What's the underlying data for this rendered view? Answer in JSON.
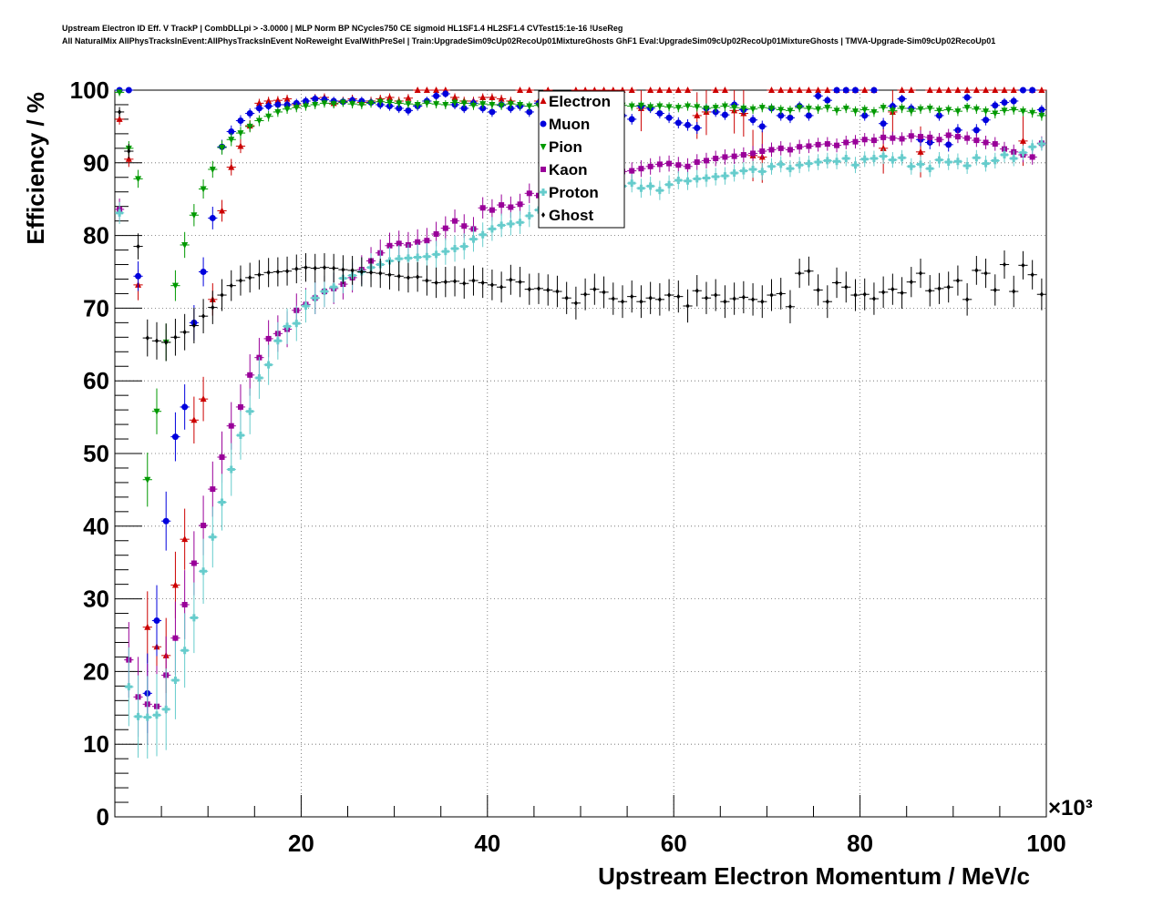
{
  "header": {
    "title_line1": "Upstream Electron ID Eff. V TrackP | CombDLLpi > -3.0000 | MLP Norm BP NCycles750 CE sigmoid HL1SF1.4 HL2SF1.4 CVTest15:1e-16 !UseReg",
    "title_line2": "All NaturalMix AllPhysTracksInEvent:AllPhysTracksInEvent NoReweight EvalWithPreSel | Train:UpgradeSim09cUp02RecoUp01MixtureGhosts GhF1 Eval:UpgradeSim09cUp02RecoUp01MixtureGhosts | TMVA-Upgrade-Sim09cUp02RecoUp01"
  },
  "chart_data": {
    "type": "scatter",
    "xlabel": "Upstream Electron Momentum / MeV/c",
    "ylabel": "Efficiency / %",
    "x_exponent_label": "×10³",
    "xlim": [
      0,
      100
    ],
    "ylim": [
      0,
      100
    ],
    "x_ticks": [
      20,
      40,
      60,
      80,
      100
    ],
    "y_ticks": [
      0,
      10,
      20,
      30,
      40,
      50,
      60,
      70,
      80,
      90,
      100
    ],
    "grid": true,
    "legend_position": "top-center",
    "colors": {
      "Electron": "#cc0000",
      "Muon": "#0000dd",
      "Pion": "#009900",
      "Kaon": "#990099",
      "Proton": "#66cccc",
      "Ghost": "#000000"
    },
    "series": [
      {
        "name": "Electron",
        "x": [
          1,
          2,
          3,
          4,
          5,
          6,
          7,
          8,
          9,
          10,
          11,
          12,
          13,
          14,
          15,
          16,
          17,
          18,
          19,
          20,
          21,
          22,
          23,
          24,
          25,
          26,
          27,
          28,
          29,
          30,
          31,
          32,
          33,
          34,
          35,
          36,
          37,
          38,
          39,
          40,
          41,
          42,
          43,
          44,
          45,
          46,
          47,
          48,
          49,
          50,
          51,
          52,
          53,
          54,
          55,
          56,
          57,
          58,
          59,
          60,
          61,
          62,
          63,
          64,
          65,
          66,
          67,
          68,
          69,
          70,
          71,
          72,
          73,
          74,
          75,
          76,
          77,
          78,
          79,
          80,
          81,
          82,
          83,
          84,
          85,
          86,
          87,
          88,
          89,
          90,
          91,
          92,
          93,
          94,
          95,
          96,
          97,
          98,
          99,
          100
        ],
        "values": [
          96,
          90.5,
          73.2,
          26.1,
          23.4,
          22.2,
          31.9,
          38.2,
          54.6,
          57.5,
          71.2,
          83.4,
          89.4,
          92.3,
          95.1,
          98.2,
          98.5,
          98.6,
          98.8,
          98,
          98.5,
          98.9,
          99,
          98.2,
          98.5,
          98.8,
          98.3,
          98.5,
          98.8,
          99,
          98.5,
          98.9,
          100,
          100,
          100,
          100,
          99,
          98.5,
          98.5,
          99,
          99,
          98.8,
          98.5,
          100,
          100,
          98.5,
          100,
          98.5,
          97.2,
          100,
          100,
          100,
          100,
          100,
          100,
          100,
          97.5,
          100,
          100,
          100,
          100,
          100,
          96.5,
          97,
          100,
          100,
          97.2,
          96.8,
          91,
          90.8,
          100,
          100,
          100,
          100,
          100,
          100,
          100,
          100,
          100,
          100,
          100,
          100,
          92,
          97,
          100,
          100,
          91.5,
          100,
          100,
          100,
          100,
          100,
          100,
          100,
          100,
          100,
          100,
          93,
          100,
          100
        ]
      },
      {
        "name": "Muon",
        "x": [
          1,
          2,
          3,
          4,
          5,
          6,
          7,
          8,
          9,
          10,
          11,
          12,
          13,
          14,
          15,
          16,
          17,
          18,
          19,
          20,
          21,
          22,
          23,
          24,
          25,
          26,
          27,
          28,
          29,
          30,
          31,
          32,
          33,
          34,
          35,
          36,
          37,
          38,
          39,
          40,
          41,
          42,
          43,
          44,
          45,
          46,
          47,
          48,
          49,
          50,
          51,
          52,
          53,
          54,
          55,
          56,
          57,
          58,
          59,
          60,
          61,
          62,
          63,
          64,
          65,
          66,
          67,
          68,
          69,
          70,
          71,
          72,
          73,
          74,
          75,
          76,
          77,
          78,
          79,
          80,
          81,
          82,
          83,
          84,
          85,
          86,
          87,
          88,
          89,
          90,
          91,
          92,
          93,
          94,
          95,
          96,
          97,
          98,
          99,
          100
        ],
        "values": [
          100,
          100,
          74.4,
          17,
          27,
          40.7,
          52.3,
          56.4,
          68,
          75,
          82.4,
          92.2,
          94.3,
          95.8,
          96.8,
          97.5,
          97.8,
          98,
          98,
          98.2,
          98.5,
          98.8,
          98.7,
          98.5,
          98.4,
          98.6,
          98.5,
          98.3,
          98,
          97.8,
          97.5,
          97.2,
          97.8,
          98.5,
          99.2,
          99.5,
          98,
          97.5,
          98.2,
          97.5,
          97,
          98,
          97.5,
          97.8,
          97,
          98.2,
          97.5,
          98,
          97.5,
          96.5,
          96.8,
          96.2,
          97.5,
          97.7,
          96.5,
          96,
          97.8,
          97.5,
          96.8,
          96.2,
          95.5,
          95.2,
          94.8,
          97.5,
          97,
          96.6,
          98,
          97.3,
          95.9,
          95,
          97.5,
          96.5,
          96.2,
          97.8,
          96.5,
          99.2,
          98.6,
          100,
          100,
          100,
          96.5,
          100,
          95.4,
          97.8,
          98.8,
          97.5,
          93.2,
          92.8,
          96.5,
          92.5,
          94.5,
          99,
          94.5,
          95.9,
          97.9,
          98.3,
          98.5,
          100,
          100,
          97.3
        ]
      },
      {
        "name": "Pion",
        "x": [
          1,
          2,
          3,
          4,
          5,
          6,
          7,
          8,
          9,
          10,
          11,
          12,
          13,
          14,
          15,
          16,
          17,
          18,
          19,
          20,
          21,
          22,
          23,
          24,
          25,
          26,
          27,
          28,
          29,
          30,
          31,
          32,
          33,
          34,
          35,
          36,
          37,
          38,
          39,
          40,
          41,
          42,
          43,
          44,
          45,
          46,
          47,
          48,
          49,
          50,
          51,
          52,
          53,
          54,
          55,
          56,
          57,
          58,
          59,
          60,
          61,
          62,
          63,
          64,
          65,
          66,
          67,
          68,
          69,
          70,
          71,
          72,
          73,
          74,
          75,
          76,
          77,
          78,
          79,
          80,
          81,
          82,
          83,
          84,
          85,
          86,
          87,
          88,
          89,
          90,
          91,
          92,
          93,
          94,
          95,
          96,
          97,
          98,
          99,
          100
        ],
        "values": [
          99.7,
          92,
          87.8,
          46.4,
          55.8,
          65.3,
          73.1,
          78.7,
          82.8,
          86.4,
          89.1,
          92.1,
          93.2,
          94.1,
          95,
          95.8,
          96.4,
          97,
          97.4,
          97.6,
          97.8,
          98,
          98.2,
          98.1,
          98.3,
          98.1,
          98,
          98.2,
          98.4,
          98.3,
          98.2,
          98.1,
          98,
          98.2,
          98.1,
          98,
          98.3,
          98.2,
          97.9,
          98.1,
          98,
          97.9,
          98.1,
          98,
          97.8,
          97.9,
          98,
          98.1,
          97.9,
          98,
          97.8,
          97.9,
          98,
          97.8,
          97.9,
          97.8,
          97.9,
          97.7,
          97.8,
          97.7,
          97.6,
          97.8,
          97.7,
          97.5,
          97.6,
          97.8,
          97.6,
          97.5,
          97.4,
          97.6,
          97.5,
          97.3,
          97.2,
          97.6,
          97.5,
          97.4,
          97.6,
          97.2,
          97.5,
          97.1,
          97.3,
          97,
          97.6,
          97.2,
          97.5,
          97.1,
          97.4,
          97.5,
          97.2,
          97.3,
          97.1,
          97.6,
          97.4,
          97.1,
          96.8,
          97.2,
          97.3,
          97.1,
          96.9,
          96.5
        ]
      },
      {
        "name": "Kaon",
        "x": [
          1,
          2,
          3,
          4,
          5,
          6,
          7,
          8,
          9,
          10,
          11,
          12,
          13,
          14,
          15,
          16,
          17,
          18,
          19,
          20,
          21,
          22,
          23,
          24,
          25,
          26,
          27,
          28,
          29,
          30,
          31,
          32,
          33,
          34,
          35,
          36,
          37,
          38,
          39,
          40,
          41,
          42,
          43,
          44,
          45,
          46,
          47,
          48,
          49,
          50,
          51,
          52,
          53,
          54,
          55,
          56,
          57,
          58,
          59,
          60,
          61,
          62,
          63,
          64,
          65,
          66,
          67,
          68,
          69,
          70,
          71,
          72,
          73,
          74,
          75,
          76,
          77,
          78,
          79,
          80,
          81,
          82,
          83,
          84,
          85,
          86,
          87,
          88,
          89,
          90,
          91,
          92,
          93,
          94,
          95,
          96,
          97,
          98,
          99,
          100
        ],
        "values": [
          83.6,
          21.6,
          16.5,
          15.5,
          15.2,
          19.5,
          24.6,
          29.2,
          34.9,
          40.1,
          45.1,
          49.5,
          53.8,
          56.4,
          60.8,
          63.2,
          65.8,
          66.5,
          67.1,
          69.7,
          70.5,
          71.4,
          72.3,
          72.7,
          73.3,
          74.2,
          75.3,
          76.5,
          77.6,
          78.6,
          78.9,
          78.7,
          79.1,
          79.3,
          80.2,
          81,
          82,
          81.3,
          80.9,
          83.8,
          83.5,
          84.2,
          83.9,
          84.3,
          85.8,
          85.5,
          86.1,
          86,
          86.6,
          86.8,
          87,
          87.3,
          88.2,
          88.7,
          88.8,
          88.9,
          89.2,
          89.5,
          89.8,
          89.9,
          89.7,
          89.5,
          90.1,
          90.3,
          90.6,
          90.8,
          90.9,
          91.1,
          91.3,
          91.6,
          91.8,
          92,
          91.8,
          92.2,
          92.3,
          92.5,
          92.6,
          92.4,
          92.8,
          92.9,
          93.2,
          93.1,
          93.5,
          93.4,
          93.3,
          93.7,
          93.6,
          93.5,
          93.2,
          93.8,
          93.6,
          93.4,
          93.1,
          92.8,
          92.6,
          91.9,
          91.5,
          91.1,
          90.8,
          92.7
        ]
      },
      {
        "name": "Proton",
        "x": [
          1,
          2,
          3,
          4,
          5,
          6,
          7,
          8,
          9,
          10,
          11,
          12,
          13,
          14,
          15,
          16,
          17,
          18,
          19,
          20,
          21,
          22,
          23,
          24,
          25,
          26,
          27,
          28,
          29,
          30,
          31,
          32,
          33,
          34,
          35,
          36,
          37,
          38,
          39,
          40,
          41,
          42,
          43,
          44,
          45,
          46,
          47,
          48,
          49,
          50,
          51,
          52,
          53,
          54,
          55,
          56,
          57,
          58,
          59,
          60,
          61,
          62,
          63,
          64,
          65,
          66,
          67,
          68,
          69,
          70,
          71,
          72,
          73,
          74,
          75,
          76,
          77,
          78,
          79,
          80,
          81,
          82,
          83,
          84,
          85,
          86,
          87,
          88,
          89,
          90,
          91,
          92,
          93,
          94,
          95,
          96,
          97,
          98,
          99,
          100
        ],
        "values": [
          83.1,
          17.9,
          13.8,
          13.7,
          14,
          14.8,
          18.8,
          22.9,
          27.4,
          33.8,
          38.5,
          43.3,
          47.8,
          52.5,
          55.8,
          60.4,
          62.2,
          65.5,
          67.5,
          67.9,
          70.3,
          71.4,
          72.3,
          72.9,
          74.1,
          74.5,
          75,
          75.6,
          76,
          76.5,
          76.8,
          76.9,
          77,
          77.1,
          77.4,
          77.8,
          78.2,
          78.5,
          79.5,
          80.1,
          80.9,
          81.4,
          81.6,
          81.8,
          82.7,
          83.5,
          84.5,
          85.1,
          84.5,
          84.9,
          85.5,
          86.1,
          86.6,
          85.3,
          86.8,
          87.2,
          86.5,
          86.8,
          86.2,
          87,
          87.6,
          87.5,
          87.8,
          87.9,
          88.1,
          88.2,
          88.6,
          88.9,
          89.1,
          88.8,
          89.5,
          89.8,
          89.2,
          89.7,
          89.9,
          90.1,
          90.3,
          90.2,
          90.6,
          89.7,
          90.5,
          90.6,
          90.9,
          90.4,
          90.7,
          89.5,
          89.8,
          89.2,
          90.4,
          90.1,
          90.2,
          89.6,
          90.7,
          89.9,
          90.3,
          91.1,
          90.6,
          91.4,
          92.2,
          92.6
        ]
      },
      {
        "name": "Ghost",
        "x": [
          1,
          2,
          3,
          4,
          5,
          6,
          7,
          8,
          9,
          10,
          11,
          12,
          13,
          14,
          15,
          16,
          17,
          18,
          19,
          20,
          21,
          22,
          23,
          24,
          25,
          26,
          27,
          28,
          29,
          30,
          31,
          32,
          33,
          34,
          35,
          36,
          37,
          38,
          39,
          40,
          41,
          42,
          43,
          44,
          45,
          46,
          47,
          48,
          49,
          50,
          51,
          52,
          53,
          54,
          55,
          56,
          57,
          58,
          59,
          60,
          61,
          62,
          63,
          64,
          65,
          66,
          67,
          68,
          69,
          70,
          71,
          72,
          73,
          74,
          75,
          76,
          77,
          78,
          79,
          80,
          81,
          82,
          83,
          84,
          85,
          86,
          87,
          88,
          89,
          90,
          91,
          92,
          93,
          94,
          95,
          96,
          97,
          98,
          99,
          100
        ],
        "values": [
          97,
          91.6,
          78.5,
          65.9,
          65.5,
          65.3,
          66,
          66.7,
          67.6,
          68.9,
          70.1,
          71.8,
          73.1,
          73.8,
          74.2,
          74.6,
          74.9,
          75,
          75.1,
          75.4,
          75.6,
          75.5,
          75.6,
          75.5,
          75.3,
          75.2,
          75,
          74.9,
          74.8,
          74.6,
          74.4,
          74.2,
          74.3,
          73.8,
          73.5,
          73.6,
          73.7,
          73.4,
          73.8,
          73.5,
          73.2,
          72.9,
          73.9,
          73.6,
          72.6,
          72.7,
          72.5,
          72.3,
          71.4,
          70.7,
          71.9,
          72.6,
          72.2,
          71.3,
          70.9,
          71.6,
          70.9,
          71.4,
          71.2,
          71.8,
          71.6,
          70.3,
          72.4,
          71.4,
          71.8,
          70.9,
          71.3,
          71.5,
          71.2,
          70.9,
          71.8,
          72,
          70.2,
          74.8,
          75.1,
          72.5,
          70.9,
          73.5,
          72.9,
          71.8,
          71.9,
          71.3,
          72.2,
          72.6,
          72.1,
          73.6,
          74.8,
          72.4,
          72.7,
          72.9,
          73.8,
          71.2,
          75.2,
          74.8,
          72.5,
          76,
          72.3,
          75.9,
          74.6,
          71.9
        ]
      }
    ]
  }
}
